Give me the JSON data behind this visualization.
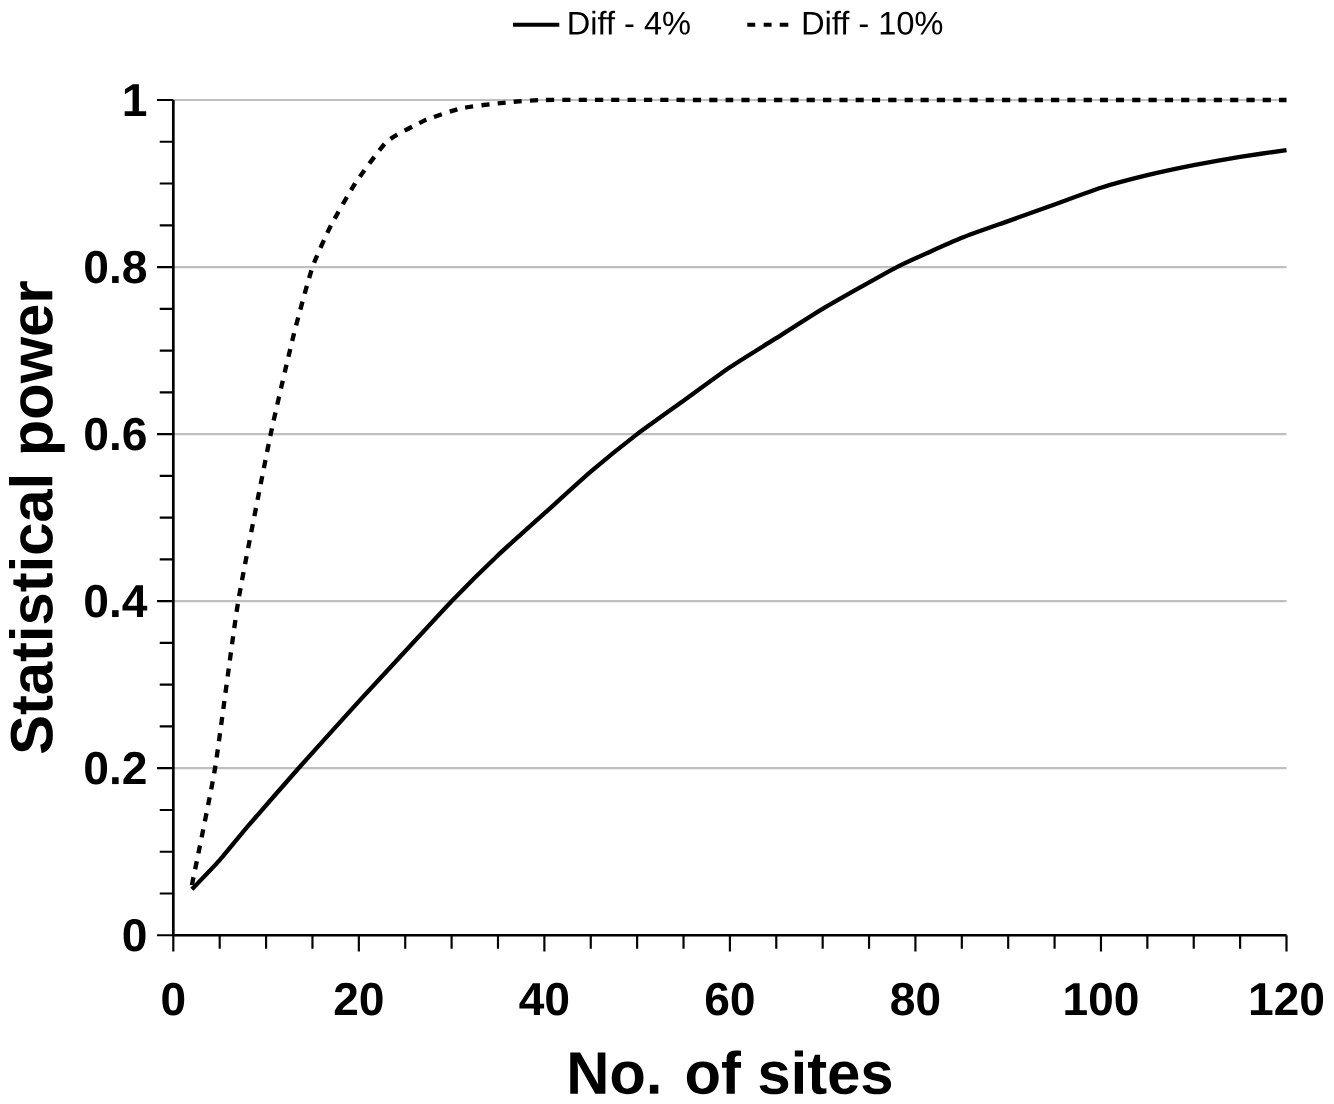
{
  "chart_data": {
    "type": "line",
    "xlabel": "No. of sites",
    "ylabel": "Statistical power",
    "xlim": [
      0,
      120
    ],
    "xticks": [
      0,
      20,
      40,
      60,
      80,
      100,
      120
    ],
    "ylim": [
      0,
      1
    ],
    "yticks": [
      0,
      0.2,
      0.4,
      0.6,
      0.8,
      1
    ],
    "grid": "y",
    "legend": "top",
    "marker": "none",
    "series": [
      {
        "name": "Diff - 4%",
        "color": "#000000",
        "line_style": "solid",
        "x": [
          2,
          5,
          8,
          13.5,
          20,
          25,
          30,
          35,
          40,
          45,
          50,
          55,
          60,
          65,
          70,
          78,
          85,
          90,
          95,
          100,
          105,
          110,
          115,
          120
        ],
        "values": [
          0.055,
          0.09,
          0.13,
          0.2,
          0.28,
          0.34,
          0.4,
          0.455,
          0.505,
          0.555,
          0.6,
          0.64,
          0.68,
          0.715,
          0.75,
          0.8,
          0.835,
          0.855,
          0.875,
          0.895,
          0.91,
          0.922,
          0.932,
          0.94
        ]
      },
      {
        "name": "Diff - 10%",
        "color": "#000000",
        "line_style": "dashed",
        "x": [
          2,
          4.5,
          7,
          10.5,
          13,
          15,
          17,
          19.6,
          23,
          27,
          31,
          35,
          40,
          60,
          80,
          100,
          120
        ],
        "values": [
          0.06,
          0.2,
          0.4,
          0.6,
          0.72,
          0.8,
          0.85,
          0.9,
          0.95,
          0.975,
          0.99,
          0.996,
          1,
          1,
          1,
          1,
          1
        ]
      }
    ]
  }
}
